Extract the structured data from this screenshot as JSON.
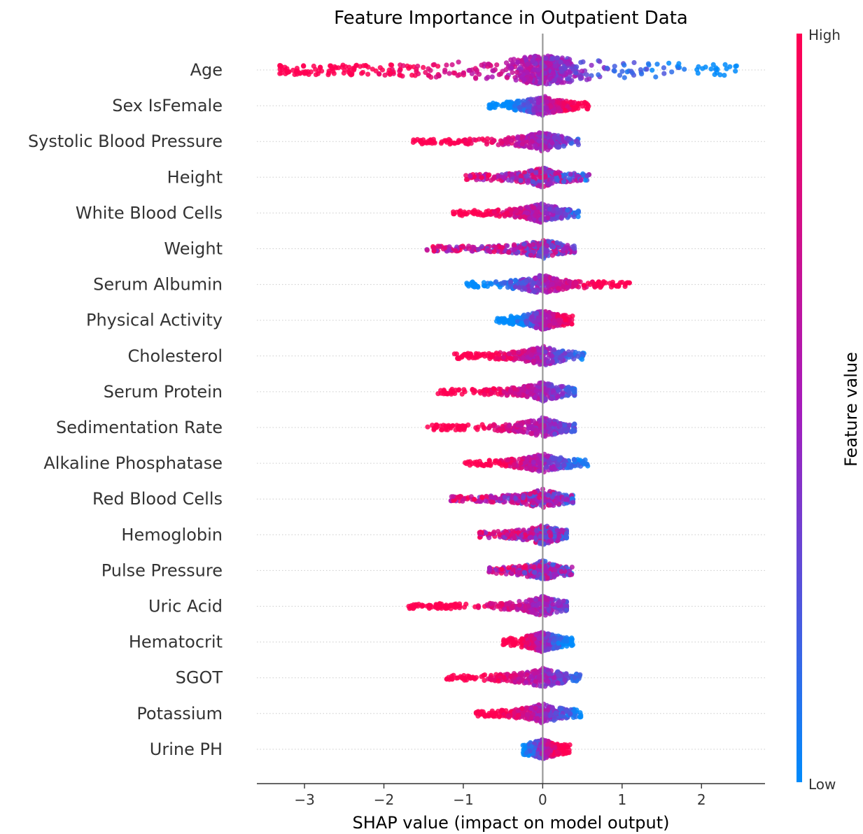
{
  "chart_data": {
    "type": "scatter",
    "title": "Feature Importance in Outpatient Data",
    "xlabel": "SHAP value (impact on model output)",
    "xlim": [
      -3.6,
      2.8
    ],
    "xticks": [
      -3,
      -2,
      -1,
      0,
      1,
      2
    ],
    "xtick_labels": [
      "−3",
      "−2",
      "−1",
      "0",
      "1",
      "2"
    ],
    "colorbar": {
      "label": "Feature value",
      "high_label": "High",
      "low_label": "Low",
      "high_color": "#ff0052",
      "mid_color": "#a61bbb",
      "low_color": "#008bfb"
    },
    "zero_line_color": "#999999",
    "features": [
      {
        "name": "Age",
        "min": -3.35,
        "max": 2.52,
        "high_side": "negative"
      },
      {
        "name": "Sex IsFemale",
        "min": -0.68,
        "max": 0.6,
        "high_side": "positive"
      },
      {
        "name": "Systolic Blood Pressure",
        "min": -1.65,
        "max": 0.45,
        "high_side": "negative"
      },
      {
        "name": "Height",
        "min": -0.97,
        "max": 0.6,
        "high_side": "mixed"
      },
      {
        "name": "White Blood Cells",
        "min": -1.13,
        "max": 0.45,
        "high_side": "negative"
      },
      {
        "name": "Weight",
        "min": -1.5,
        "max": 0.4,
        "high_side": "mixed"
      },
      {
        "name": "Serum Albumin",
        "min": -0.97,
        "max": 1.12,
        "high_side": "positive"
      },
      {
        "name": "Physical Activity",
        "min": -0.58,
        "max": 0.38,
        "high_side": "positive"
      },
      {
        "name": "Cholesterol",
        "min": -1.12,
        "max": 0.52,
        "high_side": "negative"
      },
      {
        "name": "Serum Protein",
        "min": -1.32,
        "max": 0.4,
        "high_side": "negative"
      },
      {
        "name": "Sedimentation Rate",
        "min": -1.45,
        "max": 0.4,
        "high_side": "negative"
      },
      {
        "name": "Alkaline Phosphatase",
        "min": -0.98,
        "max": 0.57,
        "high_side": "negative"
      },
      {
        "name": "Red Blood Cells",
        "min": -1.17,
        "max": 0.38,
        "high_side": "mixed"
      },
      {
        "name": "Hemoglobin",
        "min": -0.8,
        "max": 0.3,
        "high_side": "mixed"
      },
      {
        "name": "Pulse Pressure",
        "min": -0.68,
        "max": 0.37,
        "high_side": "mixed"
      },
      {
        "name": "Uric Acid",
        "min": -1.72,
        "max": 0.3,
        "high_side": "negative"
      },
      {
        "name": "Hematocrit",
        "min": -0.5,
        "max": 0.38,
        "high_side": "negative"
      },
      {
        "name": "SGOT",
        "min": -1.22,
        "max": 0.47,
        "high_side": "negative"
      },
      {
        "name": "Potassium",
        "min": -0.85,
        "max": 0.48,
        "high_side": "negative"
      },
      {
        "name": "Urine PH",
        "min": -0.25,
        "max": 0.35,
        "high_side": "positive"
      }
    ]
  }
}
